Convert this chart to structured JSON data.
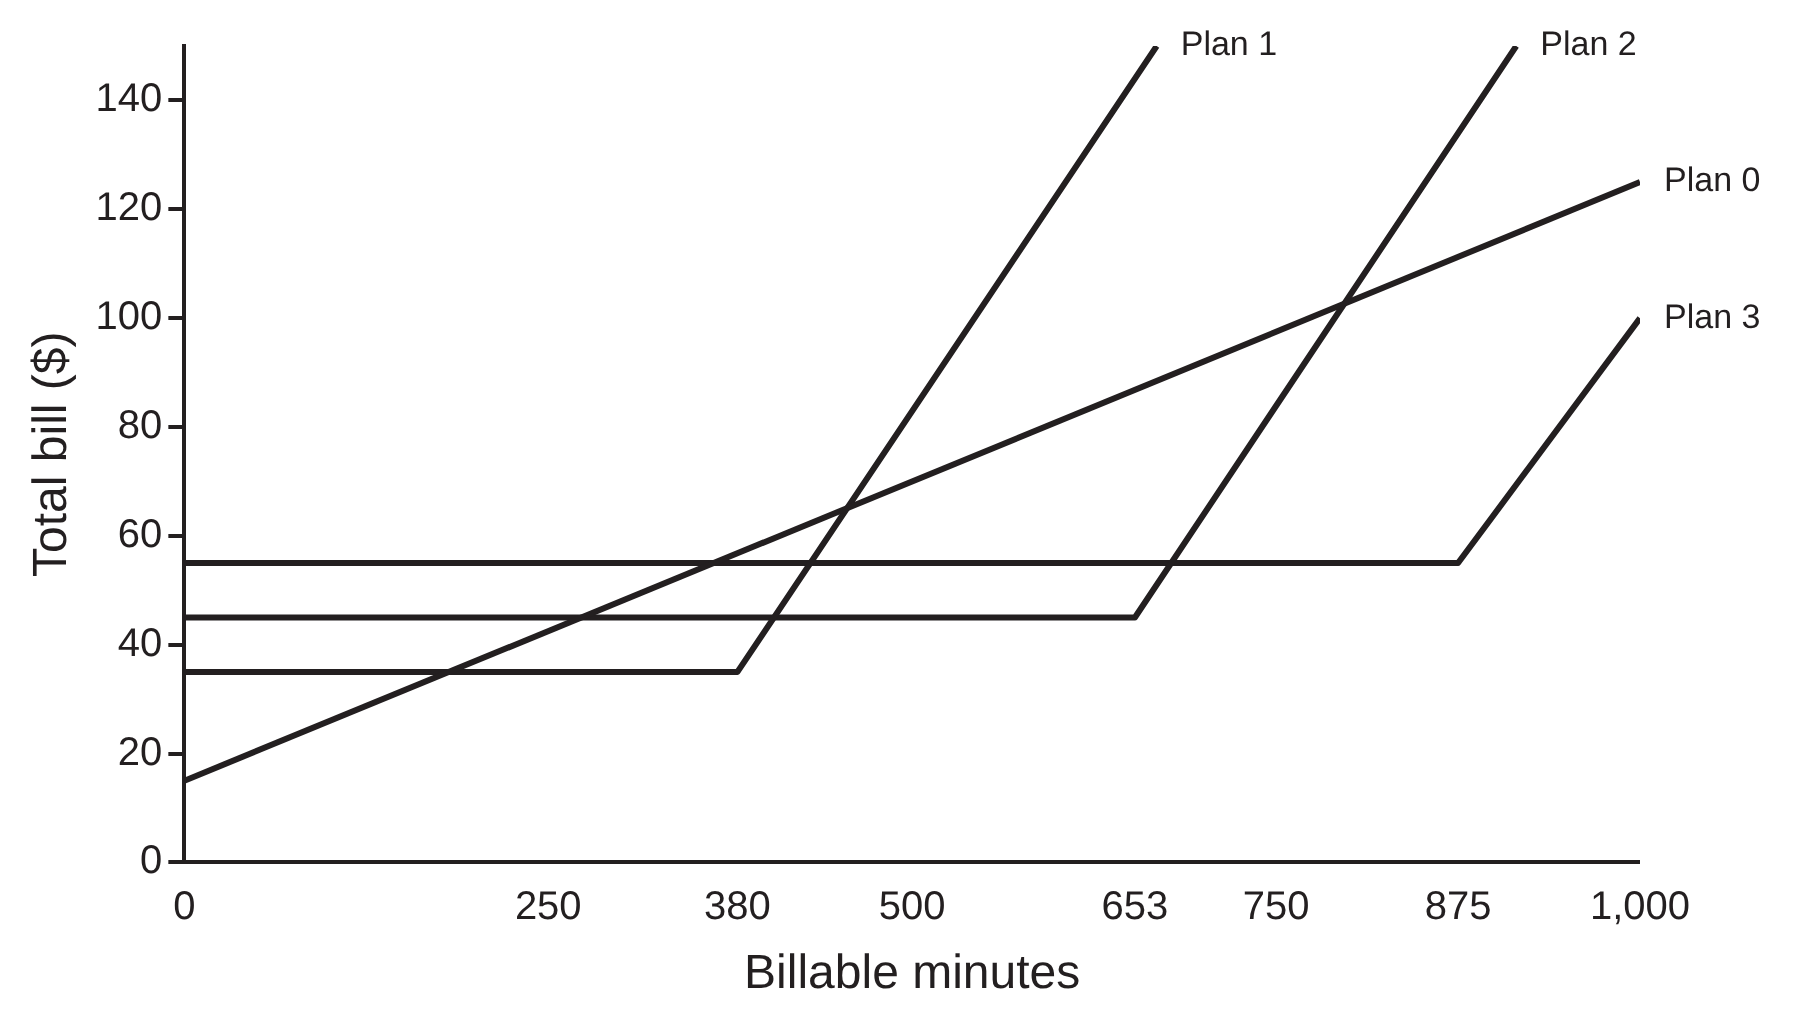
{
  "chart_data": {
    "type": "line",
    "xlabel": "Billable minutes",
    "ylabel": "Total bill ($)",
    "xlim": [
      0,
      1000
    ],
    "ylim": [
      0,
      150
    ],
    "xticks": [
      0,
      250,
      380,
      500,
      653,
      750,
      875,
      {
        "value": 1000,
        "label": "1,000"
      }
    ],
    "yticks": [
      0,
      20,
      40,
      60,
      80,
      100,
      120,
      140
    ],
    "grid": false,
    "legend": false,
    "marker": "none",
    "line_style": "solid",
    "series": [
      {
        "name": "Plan 0",
        "color": "#231f20",
        "x": [
          0,
          1000
        ],
        "values": [
          15,
          125
        ]
      },
      {
        "name": "Plan 1",
        "color": "#231f20",
        "x": [
          0,
          380,
          668
        ],
        "values": [
          35,
          35,
          150
        ]
      },
      {
        "name": "Plan 2",
        "color": "#231f20",
        "x": [
          0,
          653,
          915
        ],
        "values": [
          45,
          45,
          150
        ]
      },
      {
        "name": "Plan 3",
        "color": "#231f20",
        "x": [
          0,
          875,
          1000
        ],
        "values": [
          55,
          55,
          100
        ]
      }
    ]
  }
}
